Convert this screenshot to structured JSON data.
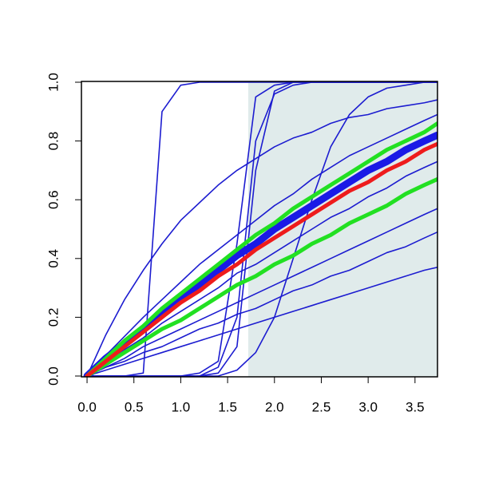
{
  "chart_data": {
    "type": "line",
    "x": [
      0,
      0.2,
      0.4,
      0.6,
      0.8,
      1.0,
      1.2,
      1.4,
      1.6,
      1.8,
      2.0,
      2.2,
      2.4,
      2.6,
      2.8,
      3.0,
      3.2,
      3.4,
      3.6,
      3.74
    ],
    "xlim": [
      -0.06,
      3.74
    ],
    "ylim": [
      0,
      1
    ],
    "xticks": [
      {
        "value": 0,
        "label": "0.0"
      },
      0.5,
      {
        "value": 1,
        "label": "1.0"
      },
      1.5,
      {
        "value": 2,
        "label": "2.0"
      },
      2.5,
      {
        "value": 3,
        "label": "3.0"
      },
      3.5
    ],
    "yticks": [
      {
        "value": 0,
        "label": "0.0"
      },
      0.2,
      0.4,
      0.6,
      0.8,
      {
        "value": 1,
        "label": "1.0"
      }
    ],
    "shaded_region": {
      "xmin": 1.72,
      "xmax": 3.74,
      "color": "#e0ebeb"
    },
    "series": [
      {
        "color": "#1c1cd0",
        "width": 1.6,
        "values": [
          0,
          0,
          0,
          0.01,
          0.9,
          0.99,
          1,
          1,
          1,
          1,
          1,
          1,
          1,
          1,
          1,
          1,
          1,
          1,
          1,
          1
        ]
      },
      {
        "color": "#1c1cd0",
        "width": 1.6,
        "values": [
          0,
          0,
          0,
          0,
          0,
          0,
          0.01,
          0.05,
          0.45,
          0.95,
          0.99,
          1,
          1,
          1,
          1,
          1,
          1,
          1,
          1,
          1
        ]
      },
      {
        "color": "#1c1cd0",
        "width": 1.6,
        "values": [
          0,
          0,
          0,
          0,
          0,
          0,
          0,
          0.03,
          0.2,
          0.8,
          0.96,
          0.99,
          1,
          1,
          1,
          1,
          1,
          1,
          1,
          1
        ]
      },
      {
        "color": "#1c1cd0",
        "width": 1.6,
        "values": [
          0,
          0,
          0,
          0,
          0,
          0,
          0,
          0.01,
          0.1,
          0.7,
          0.97,
          1,
          1,
          1,
          1,
          1,
          1,
          1,
          1,
          1
        ]
      },
      {
        "color": "#1c1cd0",
        "width": 1.6,
        "values": [
          0,
          0,
          0,
          0,
          0,
          0,
          0,
          0,
          0.02,
          0.08,
          0.2,
          0.4,
          0.6,
          0.78,
          0.89,
          0.95,
          0.98,
          0.99,
          1,
          1
        ]
      },
      {
        "color": "#1c1cd0",
        "width": 1.6,
        "values": [
          0,
          0.14,
          0.26,
          0.36,
          0.45,
          0.53,
          0.59,
          0.65,
          0.7,
          0.74,
          0.78,
          0.81,
          0.83,
          0.86,
          0.88,
          0.89,
          0.91,
          0.92,
          0.93,
          0.94
        ]
      },
      {
        "color": "#1c1cd0",
        "width": 1.6,
        "values": [
          0,
          0.07,
          0.135,
          0.2,
          0.26,
          0.32,
          0.38,
          0.43,
          0.48,
          0.53,
          0.58,
          0.62,
          0.67,
          0.71,
          0.75,
          0.78,
          0.81,
          0.84,
          0.87,
          0.89
        ]
      },
      {
        "color": "#1c1cd0",
        "width": 1.6,
        "values": [
          0,
          0.02,
          0.04,
          0.06,
          0.08,
          0.1,
          0.12,
          0.14,
          0.16,
          0.18,
          0.2,
          0.22,
          0.24,
          0.26,
          0.28,
          0.3,
          0.32,
          0.34,
          0.36,
          0.37
        ]
      },
      {
        "color": "#1c1cd0",
        "width": 1.6,
        "values": [
          0,
          0.03,
          0.06,
          0.1,
          0.13,
          0.16,
          0.19,
          0.22,
          0.25,
          0.28,
          0.31,
          0.34,
          0.37,
          0.4,
          0.43,
          0.46,
          0.49,
          0.52,
          0.55,
          0.57
        ]
      },
      {
        "color": "#1c1cd0",
        "width": 1.6,
        "values": [
          0,
          0.03,
          0.05,
          0.08,
          0.1,
          0.13,
          0.16,
          0.18,
          0.21,
          0.23,
          0.26,
          0.29,
          0.31,
          0.34,
          0.36,
          0.39,
          0.42,
          0.44,
          0.47,
          0.49
        ]
      },
      {
        "color": "#1c1cd0",
        "width": 1.6,
        "values": [
          0,
          0.05,
          0.09,
          0.13,
          0.18,
          0.22,
          0.26,
          0.3,
          0.35,
          0.38,
          0.42,
          0.46,
          0.5,
          0.54,
          0.57,
          0.61,
          0.64,
          0.68,
          0.71,
          0.73
        ]
      },
      {
        "color": "#1a1ae6",
        "width": 9,
        "values": [
          0,
          0.06,
          0.11,
          0.16,
          0.21,
          0.26,
          0.31,
          0.36,
          0.41,
          0.45,
          0.5,
          0.54,
          0.58,
          0.62,
          0.66,
          0.7,
          0.73,
          0.77,
          0.8,
          0.82
        ]
      },
      {
        "color": "#22e022",
        "width": 5,
        "values": [
          0,
          0.06,
          0.12,
          0.17,
          0.23,
          0.28,
          0.33,
          0.38,
          0.43,
          0.48,
          0.52,
          0.57,
          0.61,
          0.65,
          0.69,
          0.73,
          0.77,
          0.8,
          0.83,
          0.86
        ]
      },
      {
        "color": "#22e022",
        "width": 5,
        "values": [
          0,
          0.04,
          0.08,
          0.12,
          0.16,
          0.19,
          0.23,
          0.27,
          0.31,
          0.34,
          0.38,
          0.41,
          0.45,
          0.48,
          0.52,
          0.55,
          0.58,
          0.62,
          0.65,
          0.67
        ]
      },
      {
        "color": "#ee1c1c",
        "width": 5,
        "values": [
          0,
          0.05,
          0.1,
          0.15,
          0.2,
          0.25,
          0.29,
          0.34,
          0.38,
          0.43,
          0.47,
          0.51,
          0.55,
          0.59,
          0.63,
          0.66,
          0.7,
          0.73,
          0.77,
          0.79
        ]
      }
    ]
  }
}
